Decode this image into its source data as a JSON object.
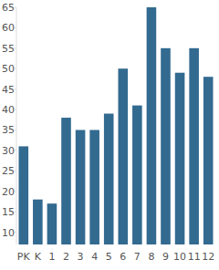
{
  "chart_data": {
    "type": "bar",
    "categories": [
      "PK",
      "K",
      "1",
      "2",
      "3",
      "4",
      "5",
      "6",
      "7",
      "8",
      "9",
      "10",
      "11",
      "12"
    ],
    "values": [
      31,
      18,
      17,
      38,
      35,
      35,
      39,
      50,
      41,
      65,
      55,
      49,
      55,
      48
    ],
    "color": "#336a90",
    "ylim": [
      7,
      65
    ],
    "yticks": [
      10,
      15,
      20,
      25,
      30,
      35,
      40,
      45,
      50,
      55,
      60,
      65
    ],
    "grid": false
  }
}
